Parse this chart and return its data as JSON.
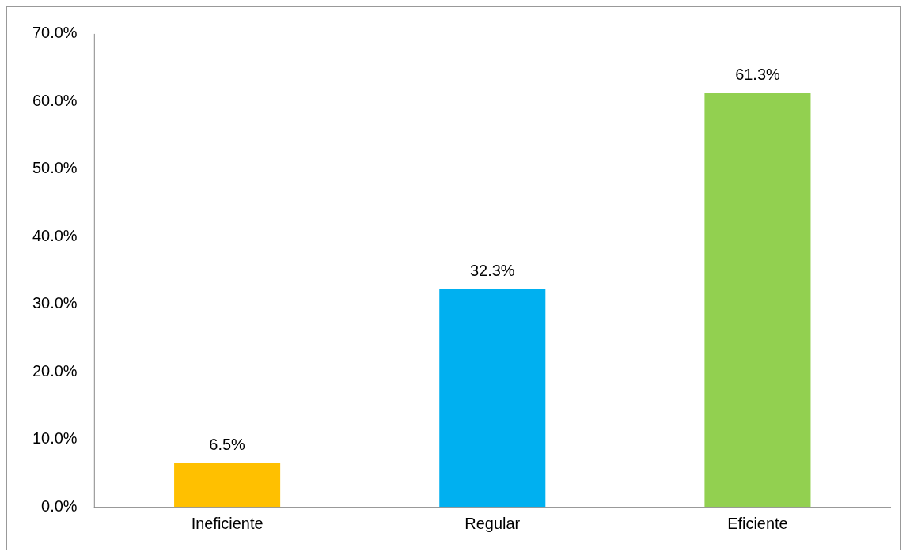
{
  "chart_data": {
    "type": "bar",
    "categories": [
      "Ineficiente",
      "Regular",
      "Eficiente"
    ],
    "values": [
      6.5,
      32.3,
      61.3
    ],
    "colors": [
      "#ffc000",
      "#00b0f0",
      "#92d050"
    ],
    "value_labels": [
      "6.5%",
      "32.3%",
      "61.3%"
    ],
    "ylim": [
      0,
      70
    ],
    "yticks": [
      {
        "value": 0,
        "label": "0.0%"
      },
      {
        "value": 10,
        "label": "10.0%"
      },
      {
        "value": 20,
        "label": "20.0%"
      },
      {
        "value": 30,
        "label": "30.0%"
      },
      {
        "value": 40,
        "label": "40.0%"
      },
      {
        "value": 50,
        "label": "50.0%"
      },
      {
        "value": 60,
        "label": "60.0%"
      },
      {
        "value": 70,
        "label": "70.0%"
      }
    ],
    "grid": false,
    "legend": false
  }
}
